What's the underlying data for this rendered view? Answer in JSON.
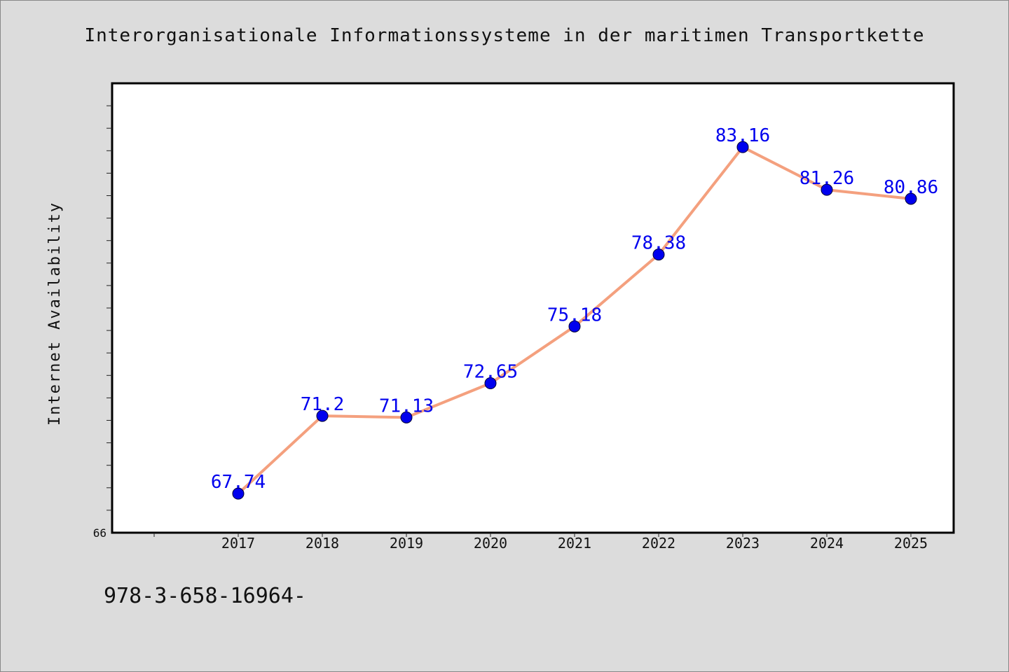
{
  "chart_data": {
    "type": "line",
    "title": "Interorganisationale Informationssysteme in der maritimen Transportkette",
    "ylabel": "Internet Availability",
    "xlabel": "",
    "categories": [
      "2017",
      "2018",
      "2019",
      "2020",
      "2021",
      "2022",
      "2023",
      "2024",
      "2025"
    ],
    "values": [
      67.74,
      71.2,
      71.13,
      72.65,
      75.18,
      78.38,
      83.16,
      81.26,
      80.86
    ],
    "data_labels": [
      "67.74",
      "71.2",
      "71.13",
      "72.65",
      "75.18",
      "78.38",
      "83.16",
      "81.26",
      "80.86"
    ],
    "ylim": [
      66,
      86
    ],
    "y_tick_labels": [
      "66"
    ],
    "grid": false,
    "line_color": "#f4a07e",
    "marker_color": "#0000ee",
    "label_color": "#0000ee"
  },
  "footer": {
    "code": "978-3-658-16964-"
  }
}
